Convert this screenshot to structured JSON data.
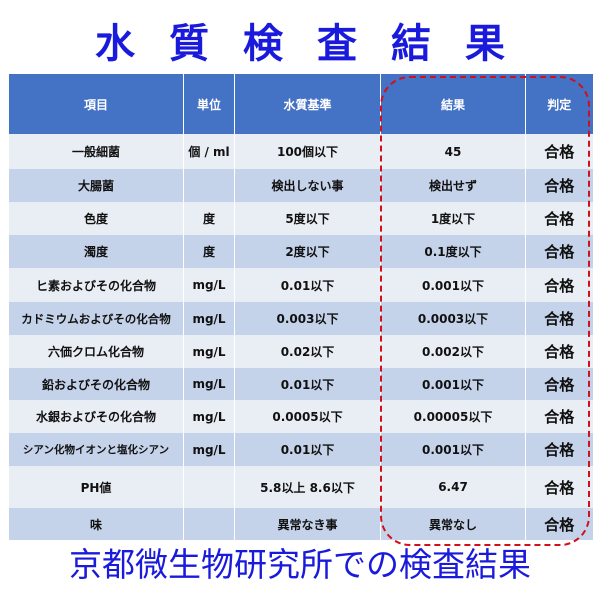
{
  "title": "水質検査結果",
  "footer": "京都微生物研究所での検査結果",
  "headers": [
    "項目",
    "単位",
    "水質基準",
    "結果",
    "判定"
  ],
  "rows": [
    [
      "一般細菌",
      "個 / ml",
      "100個以下",
      "45",
      "合格"
    ],
    [
      "大腸菌",
      "",
      "検出しない事",
      "検出せず",
      "合格"
    ],
    [
      "色度",
      "度",
      "5度以下",
      "1度以下",
      "合格"
    ],
    [
      "濁度",
      "度",
      "2度以下",
      "0.1度以下",
      "合格"
    ],
    [
      "ヒ素およびその化合物",
      "mg/L",
      "0.01以下",
      "0.001以下",
      "合格"
    ],
    [
      "カドミウムおよびその化合物",
      "mg/L",
      "0.003以下",
      "0.0003以下",
      "合格"
    ],
    [
      "六価クロム化合物",
      "mg/L",
      "0.02以下",
      "0.002以下",
      "合格"
    ],
    [
      "鉛およびその化合物",
      "mg/L",
      "0.01以下",
      "0.001以下",
      "合格"
    ],
    [
      "水銀およびその化合物",
      "mg/L",
      "0.0005以下",
      "0.00005以下",
      "合格"
    ],
    [
      "シアン化物イオンと塩化シアン",
      "mg/L",
      "0.01以下",
      "0.001以下",
      "合格"
    ],
    [
      "PH値",
      "",
      "5.8以上 8.6以下",
      "6.47",
      "合格"
    ],
    [
      "味",
      "",
      "異常なき事",
      "異常なし",
      "合格"
    ]
  ],
  "colors": {
    "header": "#4472c4",
    "row_light": "#e9edf4",
    "row_dark": "#c5d3ea",
    "title": "#1a1adc",
    "highlight": "#d0101a"
  }
}
